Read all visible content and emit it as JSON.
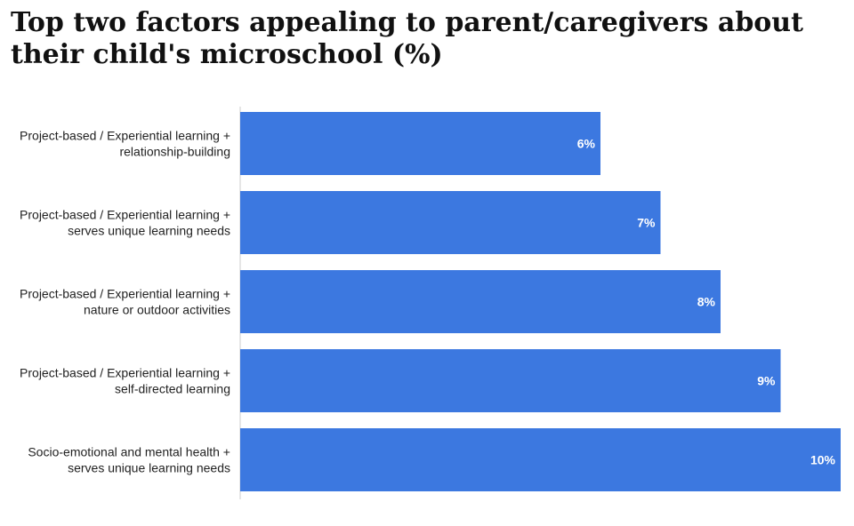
{
  "chart_data": {
    "type": "bar",
    "orientation": "horizontal",
    "title": "Top two factors appealing to parent/caregivers about their child's microschool (%)",
    "categories": [
      [
        "Project-based / Experiential learning +",
        "relationship-building"
      ],
      [
        "Project-based / Experiential learning +",
        "serves unique learning needs"
      ],
      [
        "Project-based / Experiential learning +",
        "nature or outdoor activities"
      ],
      [
        "Project-based / Experiential learning +",
        "self-directed learning"
      ],
      [
        "Socio-emotional and mental health +",
        "serves unique learning needs"
      ]
    ],
    "values": [
      6,
      7,
      8,
      9,
      10
    ],
    "value_labels": [
      "6%",
      "7%",
      "8%",
      "9%",
      "10%"
    ],
    "xlim": [
      0,
      10
    ],
    "grid": false,
    "colors": {
      "bar": "#3c78e0",
      "bar_label": "#ffffff",
      "axis": "#cccccc"
    }
  }
}
